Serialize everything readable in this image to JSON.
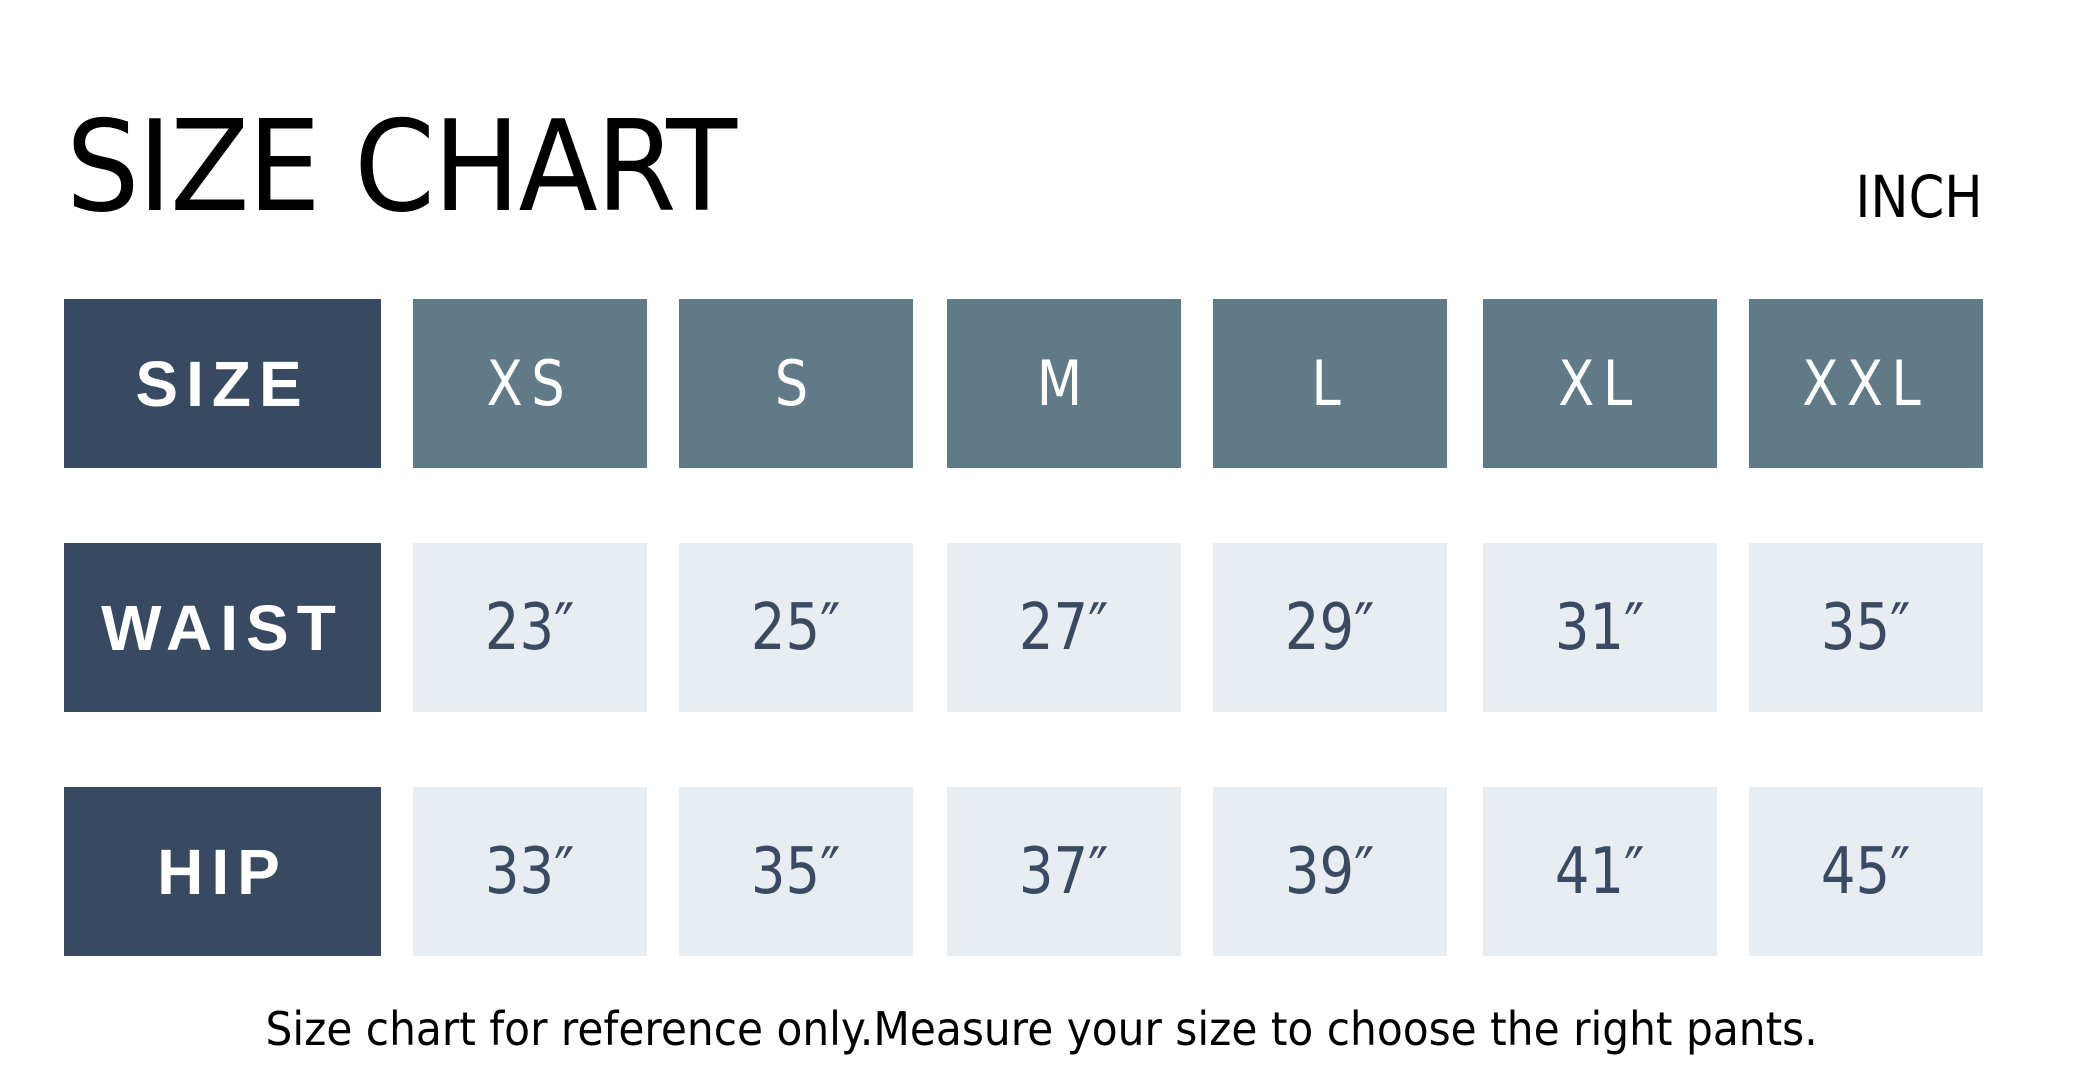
{
  "title": "SIZE CHART",
  "unit": "INCH",
  "colors": {
    "label_bg": "#384962",
    "header_bg": "#607b87",
    "value_bg": "#e8edf2",
    "value_text": "#3a4a63"
  },
  "table": {
    "rows": [
      {
        "label": "SIZE",
        "values": [
          "XS",
          "S",
          "M",
          "L",
          "XL",
          "XXL"
        ]
      },
      {
        "label": "WAIST",
        "values": [
          "23″",
          "25″",
          "27″",
          "29″",
          "31″",
          "35″"
        ]
      },
      {
        "label": "HIP",
        "values": [
          "33″",
          "35″",
          "37″",
          "39″",
          "41″",
          "45″"
        ]
      }
    ]
  },
  "note": "Size chart for reference only.Measure your size to choose the right pants."
}
